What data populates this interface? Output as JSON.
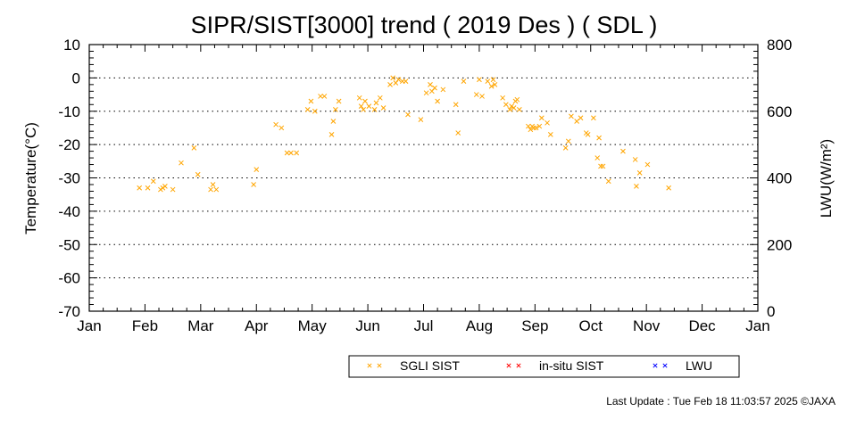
{
  "chart_data": {
    "type": "scatter",
    "title": "SIPR/SIST[3000] trend ( 2019 Des ) ( SDL )",
    "ylabel": "Temperature(°C)",
    "y2label": "LWU(W/m²)",
    "ylim": [
      -70,
      10
    ],
    "y2lim": [
      0,
      800
    ],
    "yticks": [
      10,
      0,
      -10,
      -20,
      -30,
      -40,
      -50,
      -60,
      -70
    ],
    "y2ticks": [
      800,
      600,
      400,
      200,
      0
    ],
    "xlim": [
      0,
      12
    ],
    "xticks": [
      "Jan",
      "Feb",
      "Mar",
      "Apr",
      "May",
      "Jun",
      "Jul",
      "Aug",
      "Sep",
      "Oct",
      "Nov",
      "Dec",
      "Jan"
    ],
    "grid": "horizontal dotted",
    "legend_position": "bottom",
    "series": [
      {
        "name": "SGLI SIST",
        "color": "#ffa500",
        "marker": "x",
        "points": [
          [
            0.9,
            -33
          ],
          [
            1.05,
            -33
          ],
          [
            1.15,
            -31
          ],
          [
            1.28,
            -33.5
          ],
          [
            1.32,
            -33
          ],
          [
            1.36,
            -32.5
          ],
          [
            1.5,
            -33.5
          ],
          [
            1.65,
            -25.5
          ],
          [
            1.88,
            -21
          ],
          [
            1.95,
            -29
          ],
          [
            2.18,
            -33.5
          ],
          [
            2.22,
            -32
          ],
          [
            2.28,
            -33.5
          ],
          [
            2.95,
            -32
          ],
          [
            3.0,
            -27.5
          ],
          [
            3.35,
            -14
          ],
          [
            3.45,
            -15
          ],
          [
            3.55,
            -22.5
          ],
          [
            3.62,
            -22.5
          ],
          [
            3.72,
            -22.5
          ],
          [
            3.92,
            -9.5
          ],
          [
            3.98,
            -7
          ],
          [
            4.05,
            -10
          ],
          [
            4.15,
            -5.5
          ],
          [
            4.22,
            -5.5
          ],
          [
            4.35,
            -17
          ],
          [
            4.38,
            -13
          ],
          [
            4.42,
            -9.5
          ],
          [
            4.48,
            -7
          ],
          [
            4.85,
            -6
          ],
          [
            4.88,
            -8.5
          ],
          [
            4.92,
            -9.5
          ],
          [
            4.95,
            -7
          ],
          [
            5.02,
            -8.5
          ],
          [
            5.12,
            -9.5
          ],
          [
            5.15,
            -7.5
          ],
          [
            5.22,
            -6
          ],
          [
            5.28,
            -9
          ],
          [
            5.4,
            -2
          ],
          [
            5.45,
            0
          ],
          [
            5.5,
            -1.5
          ],
          [
            5.55,
            -0.5
          ],
          [
            5.62,
            -1
          ],
          [
            5.68,
            -1
          ],
          [
            5.72,
            -11
          ],
          [
            5.95,
            -12.5
          ],
          [
            6.05,
            -4.5
          ],
          [
            6.12,
            -2
          ],
          [
            6.15,
            -4
          ],
          [
            6.2,
            -3
          ],
          [
            6.25,
            -7
          ],
          [
            6.35,
            -3.5
          ],
          [
            6.58,
            -8
          ],
          [
            6.62,
            -16.5
          ],
          [
            6.72,
            -1
          ],
          [
            6.95,
            -5
          ],
          [
            7.0,
            -0.5
          ],
          [
            7.05,
            -5.5
          ],
          [
            7.15,
            -1
          ],
          [
            7.22,
            -2.5
          ],
          [
            7.25,
            -0.5
          ],
          [
            7.28,
            -2
          ],
          [
            7.42,
            -6
          ],
          [
            7.48,
            -8
          ],
          [
            7.55,
            -9.5
          ],
          [
            7.58,
            -8.5
          ],
          [
            7.62,
            -9
          ],
          [
            7.65,
            -7
          ],
          [
            7.68,
            -6.5
          ],
          [
            7.72,
            -9.5
          ],
          [
            7.88,
            -14.5
          ],
          [
            7.92,
            -15.5
          ],
          [
            7.95,
            -14.5
          ],
          [
            7.98,
            -15
          ],
          [
            8.02,
            -15
          ],
          [
            8.08,
            -14.5
          ],
          [
            8.12,
            -12
          ],
          [
            8.22,
            -13.5
          ],
          [
            8.28,
            -17
          ],
          [
            8.55,
            -21
          ],
          [
            8.6,
            -19
          ],
          [
            8.65,
            -11.5
          ],
          [
            8.75,
            -13
          ],
          [
            8.82,
            -12
          ],
          [
            8.92,
            -16.5
          ],
          [
            8.95,
            -17
          ],
          [
            9.05,
            -12
          ],
          [
            9.12,
            -24
          ],
          [
            9.15,
            -18
          ],
          [
            9.18,
            -26.5
          ],
          [
            9.22,
            -26.5
          ],
          [
            9.32,
            -31
          ],
          [
            9.58,
            -22
          ],
          [
            9.8,
            -24.5
          ],
          [
            9.82,
            -32.5
          ],
          [
            9.88,
            -28.5
          ],
          [
            10.02,
            -26
          ],
          [
            10.4,
            -33
          ]
        ]
      },
      {
        "name": "in-situ SIST",
        "color": "#ff0000",
        "marker": "x",
        "points": []
      },
      {
        "name": "LWU",
        "color": "#0000ff",
        "marker": "x",
        "points": []
      }
    ]
  },
  "footer": "Last Update : Tue Feb 18 11:03:57 2025  ©JAXA"
}
